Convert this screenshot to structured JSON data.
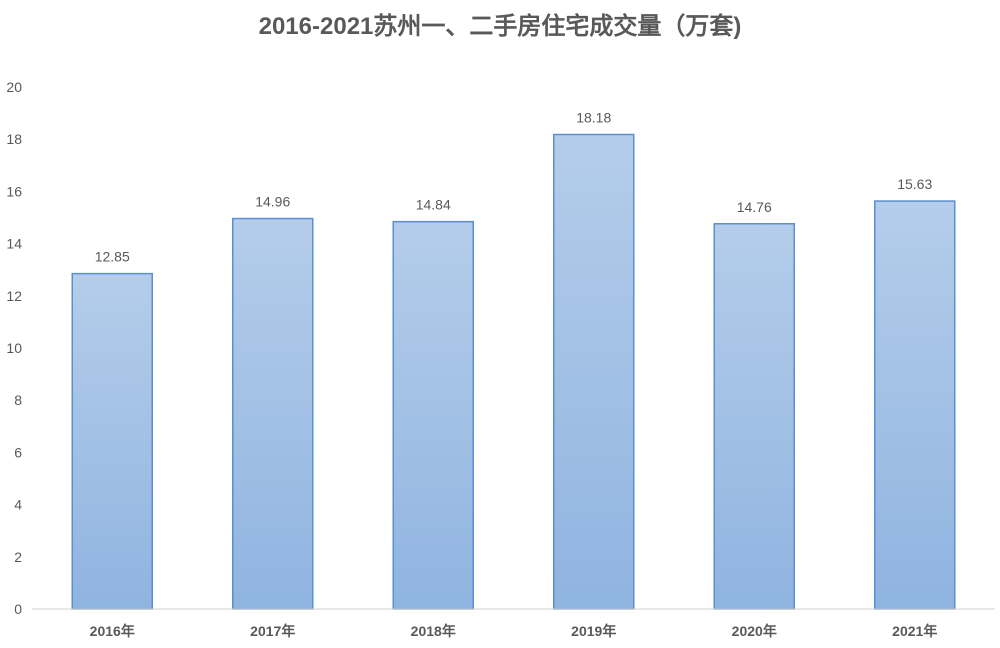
{
  "chart_data": {
    "type": "bar",
    "title": "2016-2021苏州一、二手房住宅成交量（万套)",
    "xlabel": "",
    "ylabel": "",
    "categories": [
      "2016年",
      "2017年",
      "2018年",
      "2019年",
      "2020年",
      "2021年"
    ],
    "values": [
      12.85,
      14.96,
      14.84,
      18.18,
      14.76,
      15.63
    ],
    "value_labels": [
      "12.85",
      "14.96",
      "14.84",
      "18.18",
      "14.76",
      "15.63"
    ],
    "ylim": [
      0,
      20
    ],
    "yticks": [
      0,
      2,
      4,
      6,
      8,
      10,
      12,
      14,
      16,
      18,
      20
    ],
    "grid": false,
    "legend": "none",
    "colors": {
      "bar_top": "#b4cdea",
      "bar_bottom": "#8fb4e0",
      "bar_stroke": "#5b8fcf",
      "text": "#595959"
    }
  }
}
